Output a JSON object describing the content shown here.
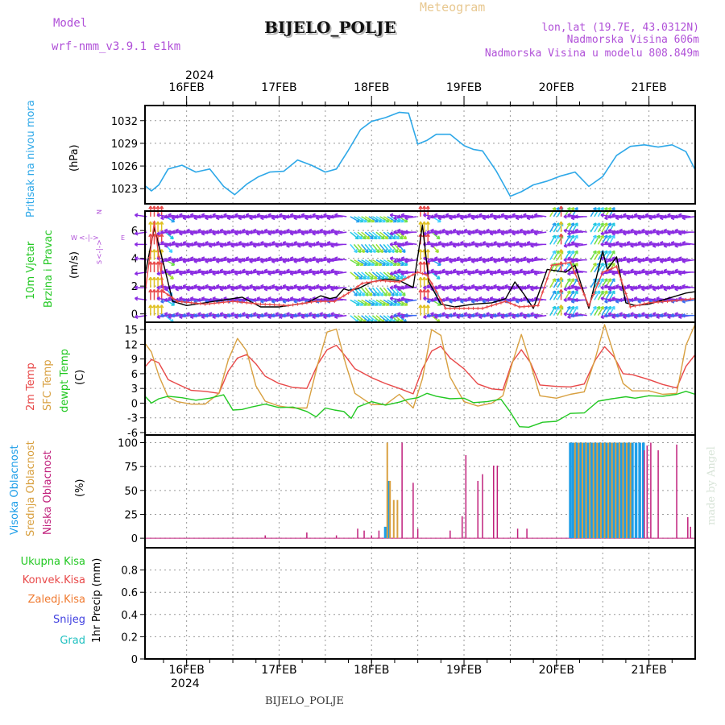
{
  "header": {
    "model_label": "Model",
    "model_value": "wrf-nmm_v3.9.1 e1km",
    "station": "BIJELO_POLJE",
    "product": "Meteogram",
    "coords": "lon,lat (19.7E, 43.0312N)",
    "elevation": "Nadmorska Visina 606m",
    "model_elevation": "Nadmorska Visina u modelu 808.849m"
  },
  "footer": {
    "station": "BIJELO_POLJE",
    "credit": "made by Angel"
  },
  "timeline": {
    "year": "2024",
    "dates": [
      "16FEB",
      "17FEB",
      "18FEB",
      "19FEB",
      "20FEB",
      "21FEB"
    ],
    "range_days": [
      15.55,
      21.5
    ]
  },
  "labels": {
    "pressure": {
      "line1": "Pritisak na nivou mora",
      "unit": "(hPa)"
    },
    "wind": {
      "line1": "10m Vjetar",
      "line2": "Brzina i Pravac",
      "unit": "(m/s)",
      "compass": {
        "n": "N",
        "s": "S",
        "w": "W",
        "e": "E",
        "arrow_h": "<-|->",
        "arrow_v": "<-|->"
      }
    },
    "temp": {
      "line1": "2m Temp",
      "line2": "SFC Temp",
      "line3": "dewpt Temp",
      "unit": "(C)"
    },
    "cloud": {
      "line1": "Visoka Oblacnost",
      "line2": "Srednja Oblacnost",
      "line3": "Niska Oblacnost",
      "unit": "(%)"
    },
    "precip": {
      "total": "Ukupna Kisa",
      "conv": "Konvek.Kisa",
      "frz": "Zaledj.Kisa",
      "snow": "Snijeg",
      "grad": "Grad",
      "axis": "1hr Precip (mm)"
    }
  },
  "colors": {
    "pressure": "#2ea8e8",
    "temp_2m": "#e84848",
    "temp_sfc": "#d8a040",
    "dewpt": "#22c822",
    "cloud_high": "#1e9ee8",
    "cloud_mid": "#d8a040",
    "cloud_low": "#c0207c",
    "wind_speed": "#000000",
    "wind_gust": "#e84848",
    "label_purple": "#b050d8",
    "label_green": "#22c822",
    "label_red": "#e84848",
    "label_orange": "#f07a30",
    "label_blue": "#4040e0",
    "label_teal": "#20c0c0"
  },
  "chart_data": [
    {
      "type": "line",
      "title": "",
      "ylabel": "(hPa)",
      "ylim": [
        1021.0,
        1034.0
      ],
      "yticks": [
        1023,
        1026,
        1029,
        1032
      ],
      "series": [
        {
          "name": "Pritisak na nivou mora",
          "x": [
            15.55,
            15.62,
            15.7,
            15.8,
            15.95,
            16.1,
            16.25,
            16.4,
            16.52,
            16.65,
            16.78,
            16.9,
            17.05,
            17.2,
            17.35,
            17.5,
            17.62,
            17.75,
            17.88,
            18.0,
            18.15,
            18.3,
            18.4,
            18.5,
            18.6,
            18.7,
            18.85,
            19.0,
            19.1,
            19.2,
            19.35,
            19.5,
            19.62,
            19.75,
            19.9,
            20.05,
            20.2,
            20.35,
            20.5,
            20.65,
            20.8,
            20.95,
            21.1,
            21.25,
            21.4,
            21.5
          ],
          "y": [
            1023.4,
            1022.7,
            1023.5,
            1025.6,
            1026.1,
            1025.2,
            1025.6,
            1023.3,
            1022.2,
            1023.6,
            1024.6,
            1025.2,
            1025.3,
            1026.8,
            1026.1,
            1025.2,
            1025.6,
            1028.1,
            1030.8,
            1031.9,
            1032.4,
            1033.1,
            1033.0,
            1028.9,
            1029.4,
            1030.2,
            1030.2,
            1028.7,
            1028.2,
            1028.0,
            1025.3,
            1022.0,
            1022.6,
            1023.5,
            1024.0,
            1024.7,
            1025.2,
            1023.3,
            1024.6,
            1027.4,
            1028.6,
            1028.8,
            1028.5,
            1028.8,
            1027.9,
            1025.5
          ]
        }
      ]
    },
    {
      "type": "line",
      "title": "",
      "ylabel": "(m/s)",
      "ylim": [
        -0.6,
        7.4
      ],
      "yticks": [
        0,
        2,
        4,
        6
      ],
      "series": [
        {
          "name": "wind speed",
          "x": [
            15.55,
            15.65,
            15.75,
            15.85,
            16.0,
            16.3,
            16.6,
            16.8,
            17.0,
            17.3,
            17.45,
            17.55,
            17.62,
            17.7,
            17.75,
            17.85,
            18.0,
            18.15,
            18.3,
            18.45,
            18.55,
            18.62,
            18.75,
            18.9,
            19.1,
            19.3,
            19.45,
            19.55,
            19.65,
            19.75,
            19.9,
            20.1,
            20.2,
            20.35,
            20.5,
            20.55,
            20.65,
            20.75,
            20.85,
            21.0,
            21.2,
            21.4,
            21.5
          ],
          "y": [
            2.8,
            6.2,
            3.6,
            0.9,
            0.6,
            0.9,
            1.2,
            0.5,
            0.5,
            0.8,
            1.3,
            1.1,
            1.2,
            1.8,
            1.7,
            1.8,
            2.3,
            2.5,
            2.4,
            1.9,
            6.4,
            2.3,
            0.7,
            0.5,
            0.7,
            0.8,
            1.1,
            2.3,
            1.4,
            0.4,
            3.2,
            3.0,
            3.5,
            0.4,
            4.5,
            3.2,
            4.1,
            0.8,
            0.6,
            0.7,
            1.1,
            1.5,
            1.6
          ]
        },
        {
          "name": "wind gust",
          "x": [
            15.55,
            15.65,
            15.75,
            15.9,
            16.2,
            16.5,
            16.8,
            17.1,
            17.4,
            17.6,
            17.75,
            17.9,
            18.1,
            18.3,
            18.5,
            18.6,
            18.8,
            19.0,
            19.2,
            19.45,
            19.6,
            19.8,
            19.95,
            20.15,
            20.35,
            20.5,
            20.65,
            20.8,
            21.0,
            21.2,
            21.5
          ],
          "y": [
            1.5,
            6.6,
            1.6,
            0.9,
            0.7,
            0.9,
            0.7,
            0.6,
            0.9,
            0.9,
            1.5,
            2.2,
            2.4,
            2.3,
            3.0,
            2.8,
            0.4,
            0.4,
            0.4,
            0.9,
            0.5,
            0.6,
            3.5,
            3.7,
            0.6,
            3.0,
            3.4,
            0.5,
            0.8,
            0.9,
            1.1
          ]
        }
      ]
    },
    {
      "type": "line",
      "title": "",
      "ylabel": "(C)",
      "ylim": [
        -6.5,
        16.5
      ],
      "yticks": [
        -6,
        -3,
        0,
        3,
        6,
        9,
        12,
        15
      ],
      "series": [
        {
          "name": "2m Temp",
          "x": [
            15.55,
            15.62,
            15.7,
            15.8,
            15.9,
            16.05,
            16.2,
            16.35,
            16.45,
            16.55,
            16.65,
            16.75,
            16.85,
            17.0,
            17.15,
            17.3,
            17.42,
            17.52,
            17.62,
            17.72,
            17.82,
            18.0,
            18.15,
            18.3,
            18.45,
            18.55,
            18.65,
            18.75,
            18.85,
            19.0,
            19.15,
            19.3,
            19.42,
            19.52,
            19.62,
            19.72,
            19.82,
            20.0,
            20.15,
            20.3,
            20.42,
            20.52,
            20.62,
            20.72,
            20.82,
            21.0,
            21.15,
            21.3,
            21.4,
            21.5
          ],
          "y": [
            7.4,
            8.9,
            8.2,
            4.8,
            3.9,
            2.6,
            2.4,
            2.0,
            6.5,
            9.2,
            9.9,
            8.0,
            5.5,
            4.0,
            3.2,
            3.0,
            8.0,
            10.9,
            11.8,
            9.5,
            7.0,
            5.2,
            4.0,
            3.0,
            1.9,
            7.0,
            10.6,
            11.6,
            9.2,
            7.0,
            3.9,
            2.9,
            2.7,
            8.3,
            10.9,
            8.2,
            3.7,
            3.4,
            3.3,
            3.9,
            8.8,
            11.5,
            9.5,
            6.0,
            5.8,
            4.8,
            3.8,
            3.1,
            7.5,
            9.9
          ]
        },
        {
          "name": "SFC Temp",
          "x": [
            15.55,
            15.62,
            15.7,
            15.8,
            15.9,
            16.05,
            16.2,
            16.35,
            16.45,
            16.55,
            16.65,
            16.75,
            16.85,
            17.0,
            17.15,
            17.3,
            17.42,
            17.52,
            17.62,
            17.72,
            17.82,
            18.0,
            18.15,
            18.3,
            18.45,
            18.55,
            18.65,
            18.75,
            18.85,
            19.0,
            19.15,
            19.3,
            19.42,
            19.52,
            19.62,
            19.72,
            19.82,
            20.0,
            20.15,
            20.3,
            20.42,
            20.52,
            20.62,
            20.72,
            20.82,
            21.0,
            21.15,
            21.3,
            21.4,
            21.5
          ],
          "y": [
            12.2,
            10.4,
            5.6,
            1.2,
            0.3,
            -0.2,
            -0.2,
            2.0,
            8.8,
            13.2,
            10.6,
            3.5,
            0.4,
            -0.6,
            -1.0,
            -1.0,
            8.1,
            14.5,
            15.1,
            8.0,
            2.0,
            -0.3,
            -0.3,
            1.8,
            -1.0,
            5.0,
            15.0,
            13.8,
            5.3,
            0.3,
            -0.6,
            0.0,
            1.5,
            8.0,
            14.0,
            8.0,
            1.5,
            1.0,
            1.8,
            2.3,
            9.1,
            16.0,
            10.0,
            4.0,
            2.5,
            2.5,
            1.8,
            2.0,
            11.8,
            16.1
          ]
        },
        {
          "name": "dewpt Temp",
          "x": [
            15.55,
            15.62,
            15.7,
            15.8,
            15.95,
            16.1,
            16.25,
            16.4,
            16.5,
            16.6,
            16.7,
            16.85,
            17.0,
            17.15,
            17.3,
            17.4,
            17.5,
            17.6,
            17.7,
            17.78,
            17.85,
            18.0,
            18.15,
            18.3,
            18.4,
            18.5,
            18.6,
            18.7,
            18.85,
            19.0,
            19.1,
            19.25,
            19.4,
            19.5,
            19.6,
            19.7,
            19.85,
            20.0,
            20.15,
            20.3,
            20.45,
            20.6,
            20.75,
            20.85,
            21.0,
            21.15,
            21.3,
            21.4,
            21.5
          ],
          "y": [
            1.4,
            0.0,
            0.9,
            1.4,
            1.1,
            0.6,
            1.0,
            1.7,
            -1.4,
            -1.3,
            -0.8,
            -0.2,
            -0.9,
            -0.8,
            -1.7,
            -2.8,
            -1.0,
            -1.4,
            -1.7,
            -3.1,
            -0.8,
            0.3,
            -0.4,
            0.2,
            0.8,
            1.1,
            2.0,
            1.4,
            0.9,
            1.0,
            0.1,
            0.3,
            0.8,
            -1.8,
            -4.8,
            -4.9,
            -3.9,
            -3.7,
            -2.1,
            -2.0,
            0.4,
            0.9,
            1.3,
            1.0,
            1.5,
            1.4,
            1.8,
            2.4,
            1.8
          ]
        }
      ]
    },
    {
      "type": "bar",
      "title": "",
      "ylabel": "(%)",
      "ylim": [
        -10,
        108
      ],
      "yticks": [
        0,
        25,
        50,
        75,
        100
      ],
      "high_cloud": {
        "x": [
          18.15,
          18.18,
          20.15,
          20.18,
          20.22,
          20.26,
          20.3,
          20.34,
          20.38,
          20.42,
          20.46,
          20.5,
          20.54,
          20.58,
          20.62,
          20.66,
          20.7,
          20.74,
          20.78,
          20.82,
          20.86,
          20.9,
          20.94
        ],
        "y": [
          12,
          60,
          100,
          100,
          100,
          100,
          100,
          100,
          100,
          100,
          100,
          100,
          100,
          100,
          100,
          100,
          100,
          100,
          100,
          100,
          100,
          100,
          100
        ]
      },
      "mid_cloud": {
        "x": [
          18.17,
          18.2,
          18.24,
          18.28,
          20.2,
          20.24,
          20.28,
          20.32,
          20.36,
          20.4,
          20.44,
          20.48,
          20.52,
          20.56,
          20.6,
          20.64,
          20.68,
          20.72,
          20.76,
          20.8
        ],
        "y": [
          100,
          60,
          40,
          40,
          100,
          100,
          100,
          100,
          100,
          100,
          100,
          100,
          100,
          100,
          100,
          100,
          100,
          100,
          100,
          100
        ]
      },
      "low_cloud": {
        "x": [
          16.85,
          17.3,
          17.62,
          17.85,
          17.92,
          18.0,
          18.08,
          18.33,
          18.45,
          18.5,
          18.85,
          18.98,
          19.02,
          19.15,
          19.2,
          19.32,
          19.36,
          19.58,
          19.68,
          20.95,
          20.98,
          21.02,
          21.1,
          21.3,
          21.42,
          21.45
        ],
        "y": [
          3,
          6,
          3,
          10,
          8,
          3,
          8,
          100,
          58,
          10,
          8,
          23,
          87,
          60,
          67,
          76,
          76,
          10,
          10,
          92,
          97,
          100,
          92,
          98,
          22,
          12
        ]
      }
    },
    {
      "type": "bar",
      "title": "",
      "ylabel": "1hr Precip (mm)",
      "ylim": [
        0,
        1.0
      ],
      "yticks": [
        0,
        0.2,
        0.4,
        0.6,
        0.8
      ],
      "series": [
        {
          "name": "Ukupna Kisa",
          "values": []
        },
        {
          "name": "Konvek.Kisa",
          "values": []
        },
        {
          "name": "Zaledj.Kisa",
          "values": []
        },
        {
          "name": "Snijeg",
          "values": []
        },
        {
          "name": "Grad",
          "values": []
        }
      ]
    }
  ]
}
